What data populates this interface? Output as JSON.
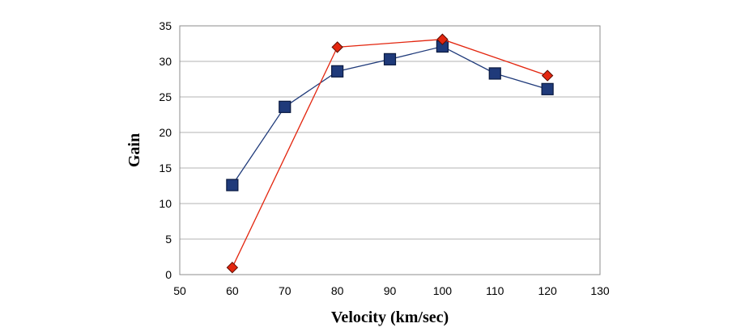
{
  "chart_data": {
    "type": "line",
    "title": "",
    "xlabel": "Velocity (km/sec)",
    "ylabel": "Gain",
    "xlim": [
      50,
      130
    ],
    "ylim": [
      0,
      35
    ],
    "x_ticks": [
      50,
      60,
      70,
      80,
      90,
      100,
      110,
      120,
      130
    ],
    "y_ticks": [
      0,
      5,
      10,
      15,
      20,
      25,
      30,
      35
    ],
    "grid": "horizontal",
    "legend": "none",
    "series": [
      {
        "marker": "square",
        "color": "#1f3a7a",
        "line_color": "#1f3a7a",
        "points": [
          {
            "x": 60,
            "y": 12.6
          },
          {
            "x": 70,
            "y": 23.6
          },
          {
            "x": 80,
            "y": 28.6
          },
          {
            "x": 90,
            "y": 30.3
          },
          {
            "x": 100,
            "y": 32.1
          },
          {
            "x": 110,
            "y": 28.3
          },
          {
            "x": 120,
            "y": 26.1
          }
        ]
      },
      {
        "marker": "diamond",
        "color": "#e3260f",
        "line_color": "#e3260f",
        "points": [
          {
            "x": 60,
            "y": 1.0
          },
          {
            "x": 80,
            "y": 32.0
          },
          {
            "x": 100,
            "y": 33.1
          },
          {
            "x": 120,
            "y": 28.0
          }
        ]
      }
    ]
  }
}
